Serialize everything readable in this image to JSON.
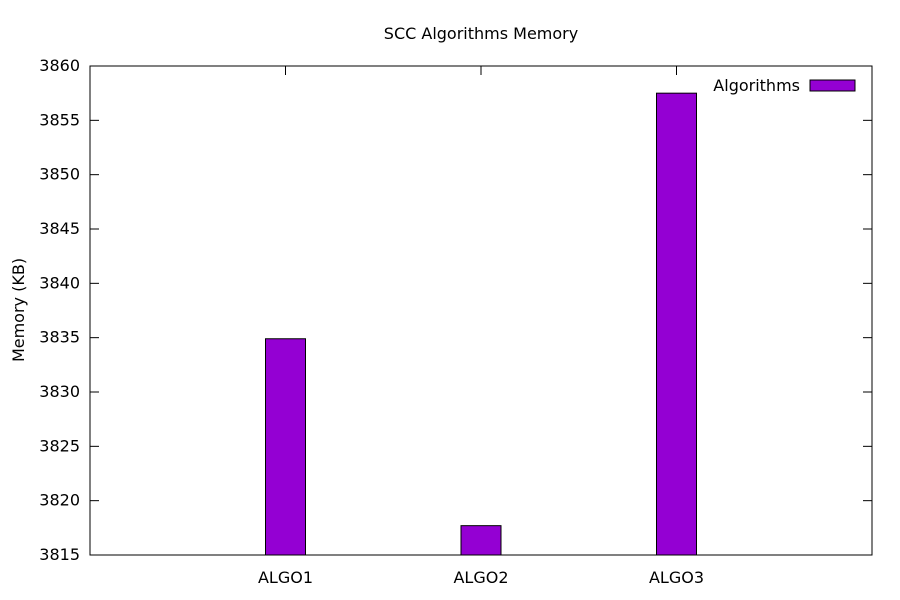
{
  "chart_data": {
    "type": "bar",
    "title": "SCC Algorithms Memory",
    "xlabel": "",
    "ylabel": "Memory (KB)",
    "categories": [
      "ALGO1",
      "ALGO2",
      "ALGO3"
    ],
    "series": [
      {
        "name": "Algorithms",
        "values": [
          3834.9,
          3817.7,
          3857.5
        ]
      }
    ],
    "ylim": [
      3815,
      3860
    ],
    "yticks": [
      3815,
      3820,
      3825,
      3830,
      3835,
      3840,
      3845,
      3850,
      3855,
      3860
    ],
    "legend_position": "top-right",
    "grid": false,
    "colors": {
      "bar": "#9400d3",
      "stroke": "#000000"
    }
  }
}
